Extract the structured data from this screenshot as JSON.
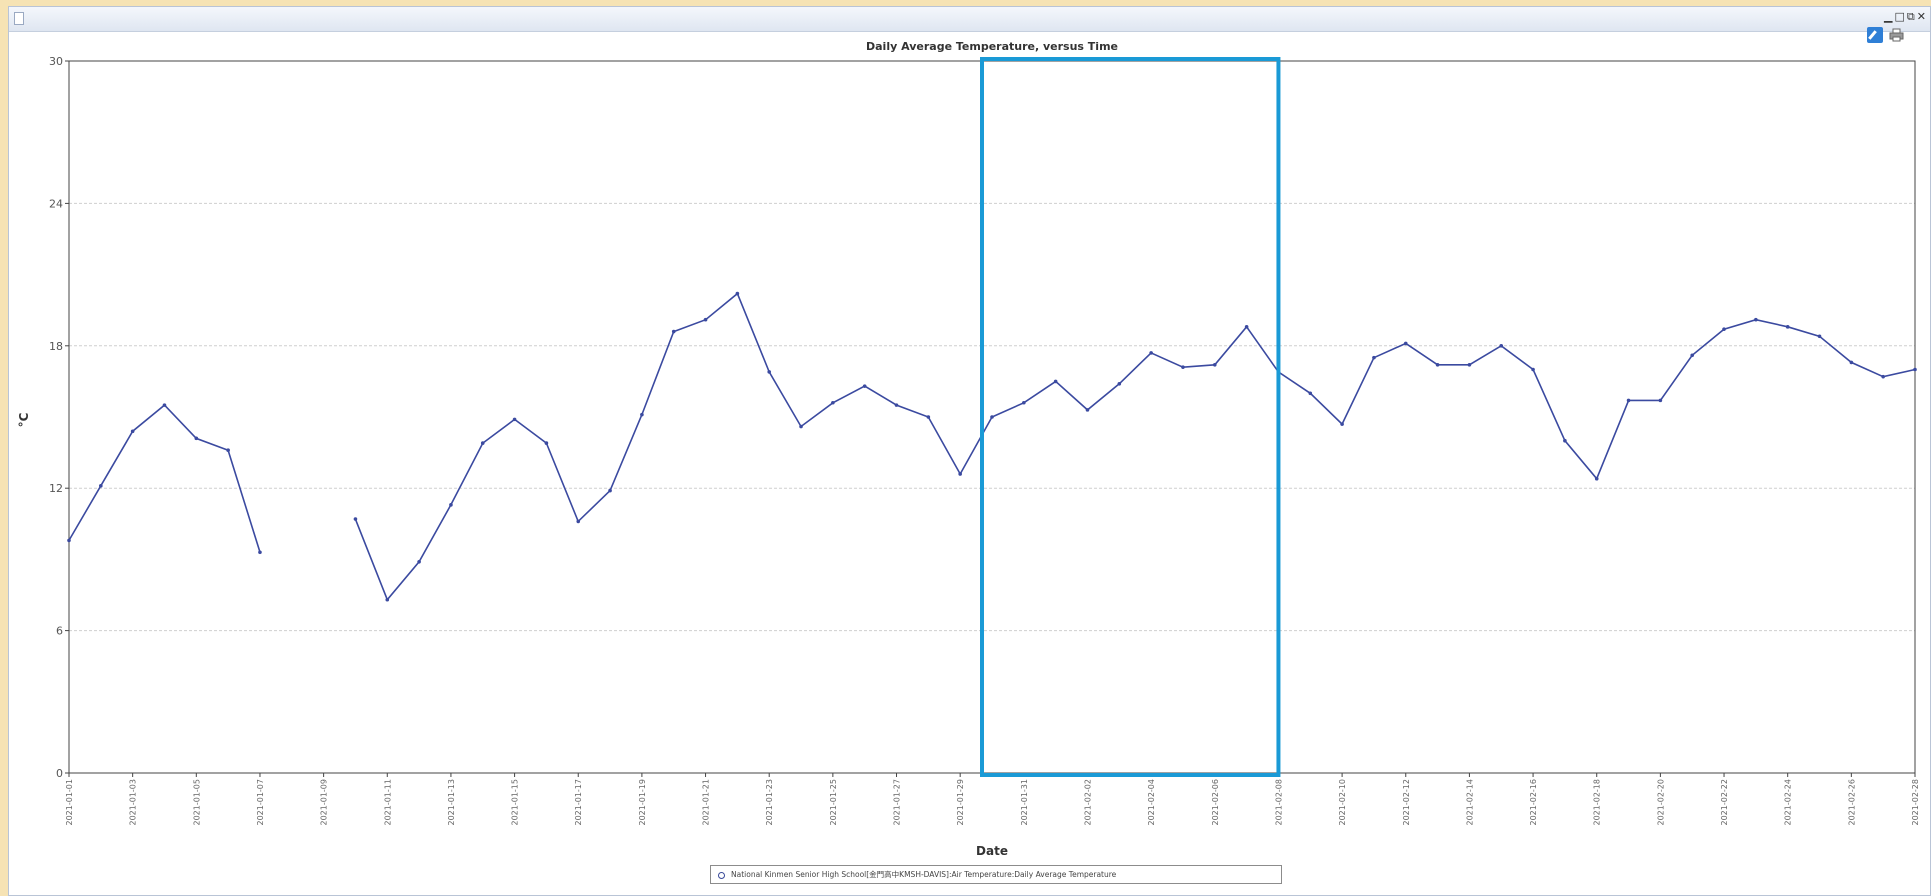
{
  "window": {
    "controls": [
      "minimize",
      "maximize",
      "restore",
      "close"
    ]
  },
  "toolbar": {
    "icons": [
      "edit-icon",
      "print-icon"
    ]
  },
  "colors": {
    "series": "#3b4aa0",
    "highlight": "#1a9ad6",
    "grid": "#cfcfcf",
    "background": "#f6e3b4"
  },
  "chart_data": {
    "type": "line",
    "title": "Daily Average Temperature, versus Time",
    "xlabel": "Date",
    "ylabel": "°C",
    "ylim": [
      0,
      30
    ],
    "yticks": [
      0,
      6,
      12,
      18,
      24,
      30
    ],
    "grid": true,
    "legend_position": "bottom",
    "x_tick_labels": [
      "2021-01-01",
      "2021-01-03",
      "2021-01-05",
      "2021-01-07",
      "2021-01-09",
      "2021-01-11",
      "2021-01-13",
      "2021-01-15",
      "2021-01-17",
      "2021-01-19",
      "2021-01-21",
      "2021-01-23",
      "2021-01-25",
      "2021-01-27",
      "2021-01-29",
      "2021-01-31",
      "2021-02-02",
      "2021-02-04",
      "2021-02-06",
      "2021-02-08",
      "2021-02-10",
      "2021-02-12",
      "2021-02-14",
      "2021-02-16",
      "2021-02-18",
      "2021-02-20",
      "2021-02-22",
      "2021-02-24",
      "2021-02-26",
      "2021-02-28"
    ],
    "x": [
      "2021-01-01",
      "2021-01-02",
      "2021-01-03",
      "2021-01-04",
      "2021-01-05",
      "2021-01-06",
      "2021-01-07",
      "2021-01-08",
      "2021-01-09",
      "2021-01-10",
      "2021-01-11",
      "2021-01-12",
      "2021-01-13",
      "2021-01-14",
      "2021-01-15",
      "2021-01-16",
      "2021-01-17",
      "2021-01-18",
      "2021-01-19",
      "2021-01-20",
      "2021-01-21",
      "2021-01-22",
      "2021-01-23",
      "2021-01-24",
      "2021-01-25",
      "2021-01-26",
      "2021-01-27",
      "2021-01-28",
      "2021-01-29",
      "2021-01-30",
      "2021-01-31",
      "2021-02-01",
      "2021-02-02",
      "2021-02-03",
      "2021-02-04",
      "2021-02-05",
      "2021-02-06",
      "2021-02-07",
      "2021-02-08",
      "2021-02-09",
      "2021-02-10",
      "2021-02-11",
      "2021-02-12",
      "2021-02-13",
      "2021-02-14",
      "2021-02-15",
      "2021-02-16",
      "2021-02-17",
      "2021-02-18",
      "2021-02-19",
      "2021-02-20",
      "2021-02-21",
      "2021-02-22",
      "2021-02-23",
      "2021-02-24",
      "2021-02-25",
      "2021-02-26",
      "2021-02-27",
      "2021-02-28"
    ],
    "series": [
      {
        "name": "National Kinmen Senior High School[金門高中KMSH-DAVIS]:Air Temperature:Daily Average Temperature",
        "values": [
          9.8,
          12.1,
          14.4,
          15.5,
          14.1,
          13.6,
          9.3,
          null,
          null,
          10.7,
          7.3,
          8.9,
          11.3,
          13.9,
          14.9,
          13.9,
          10.6,
          11.9,
          15.1,
          18.6,
          19.1,
          20.2,
          16.9,
          14.6,
          15.6,
          16.3,
          15.5,
          15.0,
          12.6,
          15.0,
          15.6,
          16.5,
          15.3,
          16.4,
          17.7,
          17.1,
          17.2,
          18.8,
          16.9,
          16.0,
          14.7,
          17.5,
          18.1,
          17.2,
          17.2,
          18.0,
          17.0,
          14.0,
          12.4,
          15.7,
          15.7,
          17.6,
          18.7,
          19.1,
          18.8,
          18.4,
          17.3,
          16.7,
          17.0
        ]
      }
    ],
    "highlight_range": [
      "2021-01-30",
      "2021-02-08"
    ]
  }
}
